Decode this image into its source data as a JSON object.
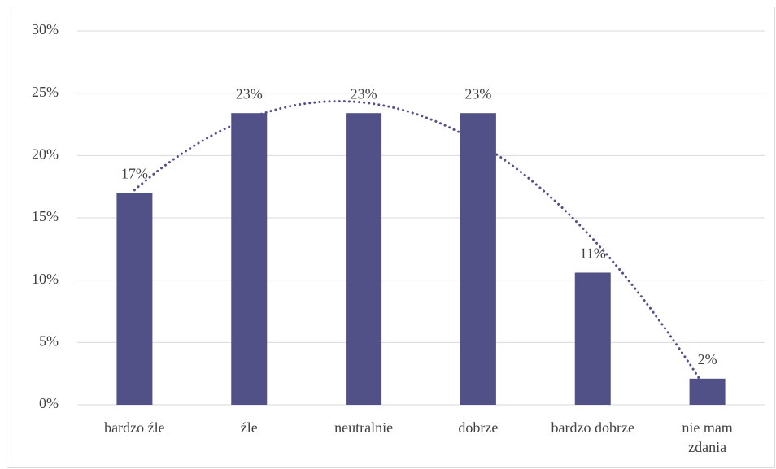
{
  "chart_data": {
    "type": "bar",
    "categories": [
      "bardzo źle",
      "źle",
      "neutralnie",
      "dobrze",
      "bardzo dobrze",
      "nie mam zdania"
    ],
    "values": [
      17,
      23.4,
      23.4,
      23.4,
      10.6,
      2.1
    ],
    "value_labels": [
      "17%",
      "23%",
      "23%",
      "23%",
      "11%",
      "2%"
    ],
    "color": "#515187",
    "ylim": [
      0,
      30
    ],
    "yticks": [
      {
        "value": 0,
        "label": "0%"
      },
      {
        "value": 5,
        "label": "5%"
      },
      {
        "value": 10,
        "label": "10%"
      },
      {
        "value": 15,
        "label": "15%"
      },
      {
        "value": 20,
        "label": "20%"
      },
      {
        "value": 25,
        "label": "25%"
      },
      {
        "value": 30,
        "label": "30%"
      }
    ],
    "grid": true,
    "trendline": "polynomial"
  }
}
